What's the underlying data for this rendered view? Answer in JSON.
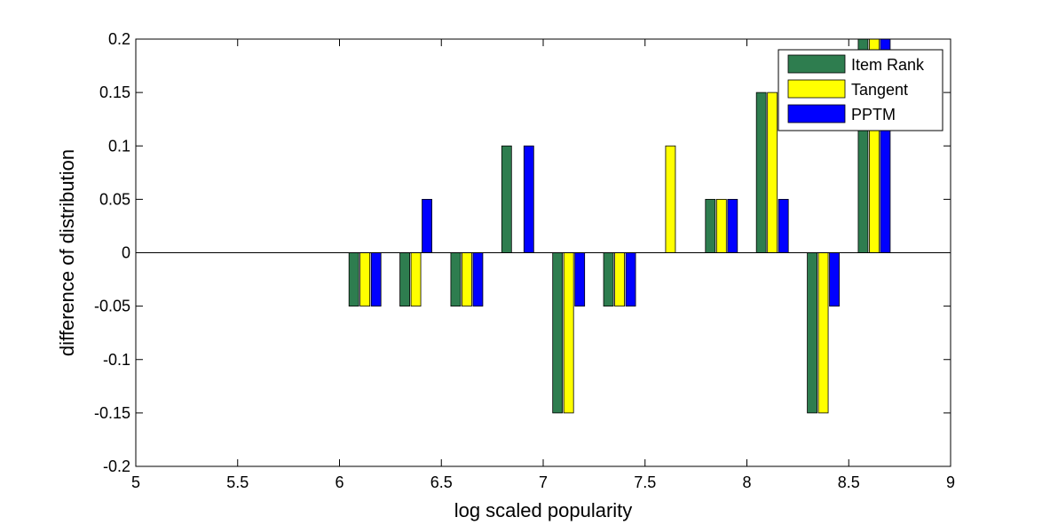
{
  "chart_data": {
    "type": "bar",
    "xlabel": "log scaled popularity",
    "ylabel": "difference of distribution",
    "xlim": [
      5,
      9
    ],
    "ylim": [
      -0.2,
      0.2
    ],
    "xticks": [
      "5",
      "5.5",
      "6",
      "6.5",
      "7",
      "7.5",
      "8",
      "8.5",
      "9"
    ],
    "yticks": [
      "-0.2",
      "-0.15",
      "-0.1",
      "-0.05",
      "0",
      "0.05",
      "0.1",
      "0.15",
      "0.2"
    ],
    "grid": false,
    "legend_position": "top-right",
    "x": [
      6.125,
      6.375,
      6.625,
      6.875,
      7.125,
      7.375,
      7.625,
      7.875,
      8.125,
      8.375,
      8.625
    ],
    "series": [
      {
        "name": "Item Rank",
        "color": "#2e7d4f",
        "values": [
          -0.05,
          -0.05,
          -0.05,
          0.1,
          -0.15,
          -0.05,
          0,
          0.05,
          0.15,
          -0.15,
          0.2
        ]
      },
      {
        "name": "Tangent",
        "color": "#ffff00",
        "values": [
          -0.05,
          -0.05,
          -0.05,
          0,
          -0.15,
          -0.05,
          0.1,
          0.05,
          0.15,
          -0.15,
          0.2
        ]
      },
      {
        "name": "PPTM",
        "color": "#0000ff",
        "values": [
          -0.05,
          0.05,
          -0.05,
          0.1,
          -0.05,
          -0.05,
          0,
          0.05,
          0.05,
          -0.05,
          0.2
        ]
      }
    ]
  }
}
